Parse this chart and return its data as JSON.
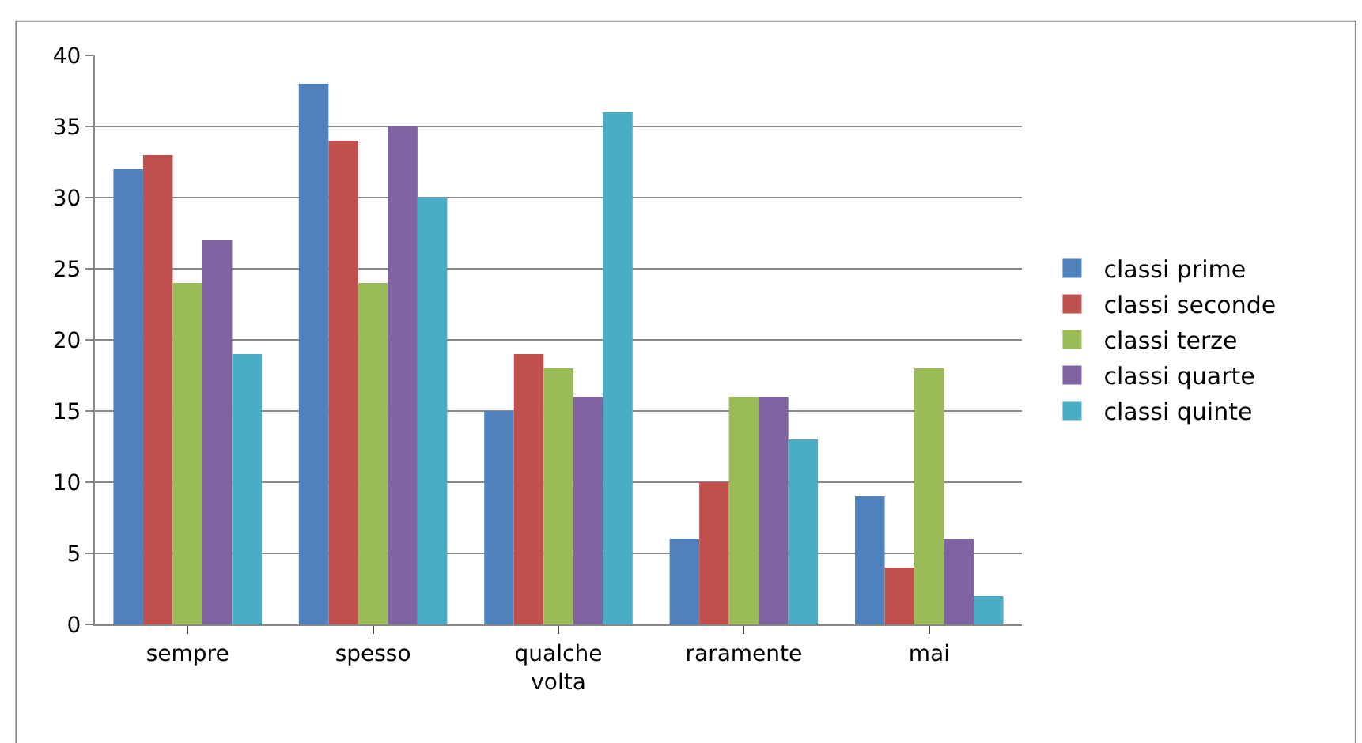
{
  "chart_data": {
    "type": "bar",
    "categories": [
      "sempre",
      "spesso",
      "qualche volta",
      "raramente",
      "mai"
    ],
    "series": [
      {
        "name": "classi prime",
        "color": "#4f81bd",
        "values": [
          32,
          38,
          15,
          6,
          9
        ]
      },
      {
        "name": "classi seconde",
        "color": "#c0504d",
        "values": [
          33,
          34,
          19,
          10,
          4
        ]
      },
      {
        "name": "classi terze",
        "color": "#9bbb59",
        "values": [
          24,
          24,
          18,
          16,
          18
        ]
      },
      {
        "name": "classi quarte",
        "color": "#8064a2",
        "values": [
          27,
          35,
          16,
          16,
          6
        ]
      },
      {
        "name": "classi quinte",
        "color": "#4bacc6",
        "values": [
          19,
          30,
          36,
          13,
          2
        ]
      }
    ],
    "ylim": [
      0,
      40
    ],
    "yticks": [
      0,
      5,
      10,
      15,
      20,
      25,
      30,
      35,
      40
    ],
    "grid": "y",
    "legend": "right"
  }
}
